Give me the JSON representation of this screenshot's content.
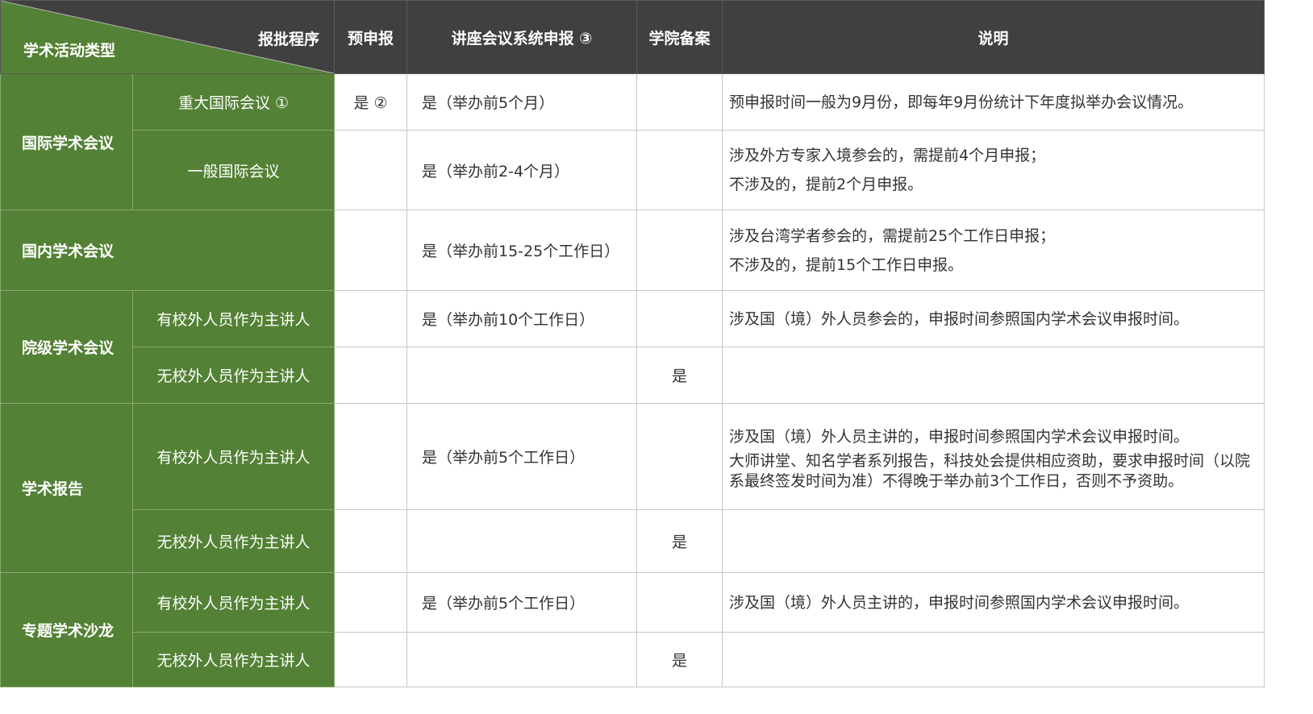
{
  "header": {
    "corner_top": "报批程序",
    "corner_bottom": "学术活动类型",
    "col_pre": "预申报",
    "col_system": "讲座会议系统申报 ③",
    "col_college": "学院备案",
    "col_note": "说明"
  },
  "colors": {
    "header_bg": "#404040",
    "category_bg": "#538135",
    "border": "#c6c6c6"
  },
  "rows": {
    "intl": {
      "category": "国际学术会议",
      "major": {
        "sub": "重大国际会议 ①",
        "pre": "是 ②",
        "system": "是（举办前5个月）",
        "college": "",
        "note": "预申报时间一般为9月份，即每年9月份统计下年度拟举办会议情况。"
      },
      "general": {
        "sub": "一般国际会议",
        "system": "是（举办前2-4个月）",
        "note1": "涉及外方专家入境参会的，需提前4个月申报；",
        "note2": "不涉及的，提前2个月申报。"
      }
    },
    "domestic": {
      "category": "国内学术会议",
      "system": "是（举办前15-25个工作日）",
      "note1": "涉及台湾学者参会的，需提前25个工作日申报；",
      "note2": "不涉及的，提前15个工作日申报。"
    },
    "college": {
      "category": "院级学术会议",
      "with": {
        "sub": "有校外人员作为主讲人",
        "system": "是（举办前10个工作日）",
        "note": "涉及国（境）外人员参会的，申报时间参照国内学术会议申报时间。"
      },
      "without": {
        "sub": "无校外人员作为主讲人",
        "college": "是"
      }
    },
    "report": {
      "category": "学术报告",
      "with": {
        "sub": "有校外人员作为主讲人",
        "system": "是（举办前5个工作日）",
        "note1": "涉及国（境）外人员主讲的，申报时间参照国内学术会议申报时间。",
        "note2": "大师讲堂、知名学者系列报告，科技处会提供相应资助，要求申报时间（以院系最终签发时间为准）不得晚于举办前3个工作日，否则不予资助。"
      },
      "without": {
        "sub": "无校外人员作为主讲人",
        "college": "是"
      }
    },
    "salon": {
      "category": "专题学术沙龙",
      "with": {
        "sub": "有校外人员作为主讲人",
        "system": "是（举办前5个工作日）",
        "note": "涉及国（境）外人员主讲的，申报时间参照国内学术会议申报时间。"
      },
      "without": {
        "sub": "无校外人员作为主讲人",
        "college": "是"
      }
    }
  }
}
